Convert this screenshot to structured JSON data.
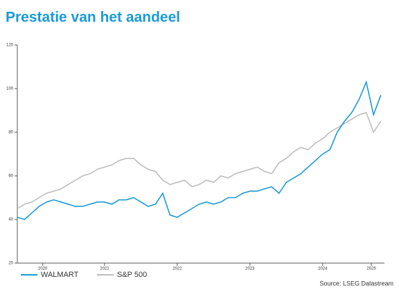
{
  "chart_data": {
    "type": "line",
    "title": "Prestatie van het aandeel",
    "x": [
      2020.3,
      2020.4,
      2020.5,
      2020.6,
      2020.7,
      2020.8,
      2020.9,
      2021.0,
      2021.1,
      2021.2,
      2021.3,
      2021.4,
      2021.5,
      2021.6,
      2021.7,
      2021.8,
      2021.9,
      2022.0,
      2022.1,
      2022.2,
      2022.3,
      2022.4,
      2022.5,
      2022.6,
      2022.7,
      2022.8,
      2022.9,
      2023.0,
      2023.1,
      2023.2,
      2023.3,
      2023.4,
      2023.5,
      2023.6,
      2023.7,
      2023.8,
      2023.9,
      2024.0,
      2024.1,
      2024.2,
      2024.3,
      2024.4,
      2024.5,
      2024.6,
      2024.7,
      2024.8,
      2024.9,
      2025.0,
      2025.1,
      2025.2,
      2025.3
    ],
    "series": [
      {
        "name": "WALMART",
        "color": "#1a9ad6",
        "values": [
          41,
          40,
          43,
          46,
          48,
          49,
          48,
          47,
          46,
          46,
          47,
          48,
          48,
          47,
          49,
          49,
          50,
          48,
          46,
          47,
          52,
          42,
          41,
          43,
          45,
          47,
          48,
          47,
          48,
          50,
          50,
          52,
          53,
          53,
          54,
          55,
          52,
          57,
          59,
          61,
          64,
          67,
          70,
          72,
          80,
          85,
          89,
          95,
          103,
          88,
          97
        ]
      },
      {
        "name": "S&P 500",
        "color": "#bdbdbd",
        "values": [
          45,
          47,
          48,
          50,
          52,
          53,
          54,
          56,
          58,
          60,
          61,
          63,
          64,
          65,
          67,
          68,
          68,
          65,
          63,
          62,
          58,
          56,
          57,
          58,
          55,
          56,
          58,
          57,
          60,
          59,
          61,
          62,
          63,
          64,
          62,
          61,
          66,
          68,
          71,
          73,
          72,
          75,
          77,
          80,
          82,
          84,
          86,
          88,
          89,
          80,
          85
        ]
      }
    ],
    "xlim": [
      2020.3,
      2025.35
    ],
    "xticks": [
      {
        "value": 2020.65,
        "label": "2020"
      },
      {
        "value": 2021.5,
        "label": "2021"
      },
      {
        "value": 2022.5,
        "label": "2022"
      },
      {
        "value": 2023.5,
        "label": "2023"
      },
      {
        "value": 2024.5,
        "label": "2024"
      },
      {
        "value": 2025.17,
        "label": "2025"
      }
    ],
    "ylim": [
      20,
      120
    ],
    "yticks": [
      20,
      40,
      60,
      80,
      100,
      120
    ],
    "source": "Source: LSEG Datastream"
  }
}
